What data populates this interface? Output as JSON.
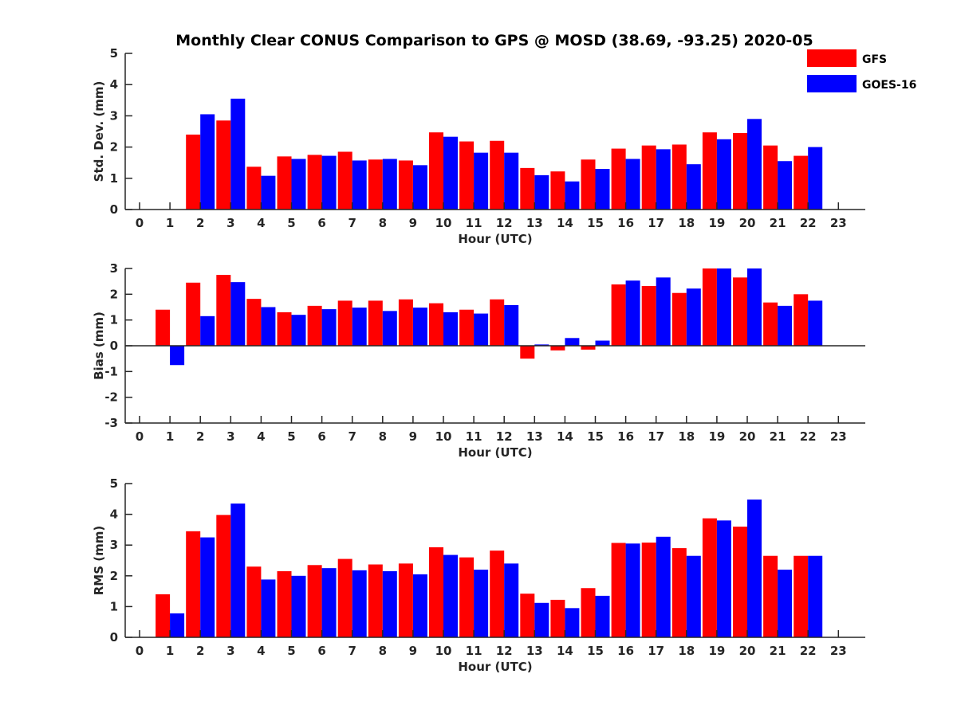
{
  "title": "Monthly Clear CONUS Comparison to GPS @ MOSD (38.69, -93.25) 2020-05",
  "legend": [
    {
      "label": "GFS",
      "color": "#ff0000"
    },
    {
      "label": "GOES-16",
      "color": "#0000ff"
    }
  ],
  "chart_data": [
    {
      "type": "bar",
      "x": [
        0,
        1,
        2,
        3,
        4,
        5,
        6,
        7,
        8,
        9,
        10,
        11,
        12,
        13,
        14,
        15,
        16,
        17,
        18,
        19,
        20,
        21,
        22,
        23
      ],
      "xlabel": "Hour (UTC)",
      "ylabel": "Std. Dev. (mm)",
      "ylim": [
        0,
        5
      ],
      "yticks": [
        0,
        1,
        2,
        3,
        4,
        5
      ],
      "legend_position": "top-right",
      "series": [
        {
          "name": "GFS",
          "color": "#ff0000",
          "values": [
            null,
            null,
            2.4,
            2.85,
            1.37,
            1.7,
            1.75,
            1.85,
            1.6,
            1.57,
            2.47,
            2.18,
            2.2,
            1.33,
            1.22,
            1.6,
            1.95,
            2.05,
            2.08,
            2.47,
            2.45,
            2.05,
            1.72,
            null
          ]
        },
        {
          "name": "GOES-16",
          "color": "#0000ff",
          "values": [
            null,
            null,
            3.05,
            3.55,
            1.08,
            1.62,
            1.72,
            1.57,
            1.62,
            1.42,
            2.33,
            1.82,
            1.82,
            1.1,
            0.9,
            1.3,
            1.62,
            1.93,
            1.45,
            2.25,
            2.9,
            1.55,
            2.0,
            null
          ]
        }
      ]
    },
    {
      "type": "bar",
      "x": [
        0,
        1,
        2,
        3,
        4,
        5,
        6,
        7,
        8,
        9,
        10,
        11,
        12,
        13,
        14,
        15,
        16,
        17,
        18,
        19,
        20,
        21,
        22,
        23
      ],
      "xlabel": "Hour (UTC)",
      "ylabel": "Bias (mm)",
      "ylim": [
        -3,
        3
      ],
      "yticks": [
        -3,
        -2,
        -1,
        0,
        1,
        2,
        3
      ],
      "series": [
        {
          "name": "GFS",
          "color": "#ff0000",
          "values": [
            null,
            1.4,
            2.45,
            2.75,
            1.82,
            1.3,
            1.55,
            1.75,
            1.75,
            1.8,
            1.65,
            1.4,
            1.8,
            -0.5,
            -0.18,
            -0.15,
            2.38,
            2.32,
            2.05,
            3.0,
            2.65,
            1.68,
            2.0,
            null
          ]
        },
        {
          "name": "GOES-16",
          "color": "#0000ff",
          "values": [
            null,
            -0.75,
            1.15,
            2.47,
            1.5,
            1.2,
            1.42,
            1.48,
            1.35,
            1.48,
            1.3,
            1.25,
            1.58,
            0.05,
            0.3,
            0.2,
            2.53,
            2.65,
            2.22,
            3.0,
            3.0,
            1.55,
            1.75,
            null
          ]
        }
      ]
    },
    {
      "type": "bar",
      "x": [
        0,
        1,
        2,
        3,
        4,
        5,
        6,
        7,
        8,
        9,
        10,
        11,
        12,
        13,
        14,
        15,
        16,
        17,
        18,
        19,
        20,
        21,
        22,
        23
      ],
      "xlabel": "Hour (UTC)",
      "ylabel": "RMS (mm)",
      "ylim": [
        0,
        5
      ],
      "yticks": [
        0,
        1,
        2,
        3,
        4,
        5
      ],
      "series": [
        {
          "name": "GFS",
          "color": "#ff0000",
          "values": [
            null,
            1.4,
            3.45,
            3.98,
            2.3,
            2.15,
            2.35,
            2.55,
            2.37,
            2.4,
            2.93,
            2.6,
            2.82,
            1.42,
            1.22,
            1.6,
            3.07,
            3.08,
            2.9,
            3.87,
            3.6,
            2.65,
            2.65,
            null
          ]
        },
        {
          "name": "GOES-16",
          "color": "#0000ff",
          "values": [
            null,
            0.78,
            3.25,
            4.35,
            1.88,
            2.0,
            2.25,
            2.18,
            2.15,
            2.05,
            2.68,
            2.2,
            2.4,
            1.12,
            0.95,
            1.35,
            3.05,
            3.27,
            2.65,
            3.8,
            4.48,
            2.2,
            2.65,
            null
          ]
        }
      ]
    }
  ]
}
